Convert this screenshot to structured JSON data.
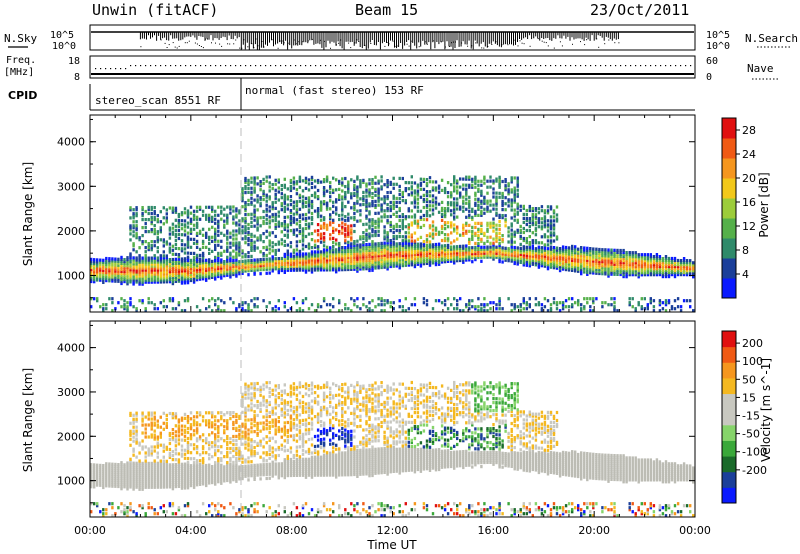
{
  "header": {
    "radar": "Unwin (fitACF)",
    "beam": "Beam 15",
    "date": "23/Oct/2011"
  },
  "panels": {
    "nsky_label": "N.Sky",
    "nsearch_label": "N.Search",
    "nsky_ticks": [
      "10^5",
      "10^0"
    ],
    "nsearch_ticks": [
      "10^5",
      "10^0"
    ],
    "freq_label_1": "Freq.",
    "freq_label_2": "[MHz]",
    "freq_ticks": [
      "18",
      "8"
    ],
    "nave_label": "Nave",
    "nave_ticks": [
      "60",
      "0"
    ],
    "cpid_label": "CPID",
    "cpid_segments": [
      "stereo_scan 8551 RF",
      "normal (fast stereo) 153 RF"
    ]
  },
  "colors": {
    "power_scale": [
      "#0a1aff",
      "#1b3f9a",
      "#2f8a6a",
      "#55b04a",
      "#9ccc3a",
      "#f2c81a",
      "#f5961e",
      "#f05a14",
      "#e01010"
    ],
    "velocity_scale": [
      "#e01010",
      "#f05a14",
      "#f5961e",
      "#f4b820",
      "#c8c8c0",
      "#c8c8c0",
      "#86d46a",
      "#3aa83a",
      "#1a6a2a",
      "#1b3f9a",
      "#0a1aff"
    ],
    "ground_scatter": "#bcbcb4"
  },
  "chart_data": [
    {
      "type": "heatmap",
      "name": "power",
      "xlabel": "Time UT",
      "ylabel": "Slant Range [km]",
      "xticks": [
        "00:00",
        "04:00",
        "08:00",
        "12:00",
        "16:00",
        "20:00",
        "00:00"
      ],
      "xlim_hours": [
        0,
        24
      ],
      "yticks": [
        "1000",
        "2000",
        "3000",
        "4000"
      ],
      "ylim": [
        180,
        4600
      ],
      "colorbar_label": "Power [dB]",
      "colorbar_ticks": [
        "4",
        "8",
        "12",
        "16",
        "20",
        "24",
        "28"
      ],
      "colorbar_range": [
        0,
        30
      ],
      "cpid_change_hour": 6.0,
      "features": [
        {
          "desc_hour": [
            0,
            24
          ],
          "band_center_km": [
            1150,
            1150,
            1320,
            1500,
            1550,
            1350,
            1200
          ],
          "band_hours": [
            0,
            4,
            8,
            12,
            16,
            20,
            24
          ],
          "peak_db": 24
        },
        {
          "hour_range": [
            9.0,
            10.3
          ],
          "range_km": [
            1800,
            2200
          ],
          "peak_db": 28
        }
      ]
    },
    {
      "type": "heatmap",
      "name": "velocity",
      "xlabel": "Time UT",
      "ylabel": "Slant Range [km]",
      "xticks": [
        "00:00",
        "04:00",
        "08:00",
        "12:00",
        "16:00",
        "20:00",
        "00:00"
      ],
      "xlim_hours": [
        0,
        24
      ],
      "yticks": [
        "1000",
        "2000",
        "3000",
        "4000"
      ],
      "ylim": [
        180,
        4600
      ],
      "colorbar_label": "Velocity [m s^-1]",
      "colorbar_ticks": [
        "200",
        "100",
        "50",
        "15",
        "-15",
        "-50",
        "-100",
        "-200"
      ],
      "colorbar_range": [
        -250,
        250
      ],
      "cpid_change_hour": 6.0
    }
  ]
}
